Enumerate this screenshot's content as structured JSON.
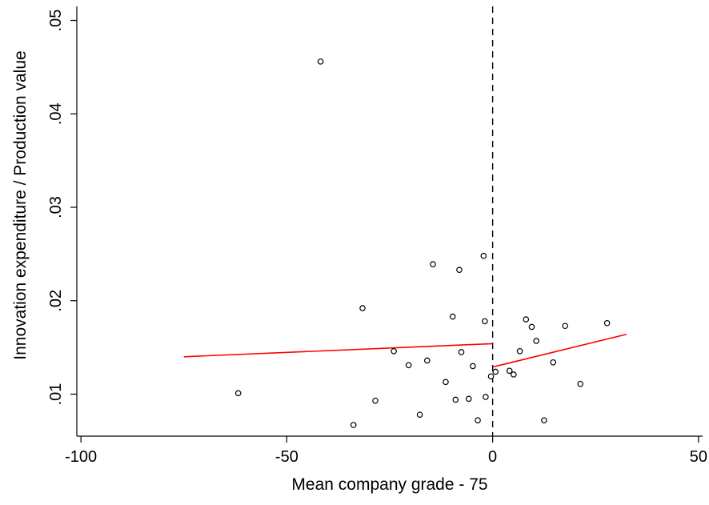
{
  "chart_data": {
    "type": "scatter",
    "xlabel": "Mean company grade - 75",
    "ylabel": "Innovation expenditure / Production value",
    "xlim": [
      -101,
      51
    ],
    "ylim": [
      0.0055,
      0.0515
    ],
    "x_ticks": [
      -100,
      -50,
      0,
      50
    ],
    "x_tick_labels": [
      "-100",
      "-50",
      "0",
      "50"
    ],
    "y_ticks": [
      0.01,
      0.02,
      0.03,
      0.04,
      0.05
    ],
    "y_tick_labels": [
      ".01",
      ".02",
      ".03",
      ".04",
      ".05"
    ],
    "grid": false,
    "legend": "none",
    "cutoff_line": {
      "x": 0,
      "style": "dashed",
      "color": "#000000"
    },
    "points": [
      {
        "x": -41.8,
        "y": 0.0456
      },
      {
        "x": -61.8,
        "y": 0.0101
      },
      {
        "x": -33.8,
        "y": 0.0067
      },
      {
        "x": -31.6,
        "y": 0.0192
      },
      {
        "x": -28.5,
        "y": 0.0093
      },
      {
        "x": -24.0,
        "y": 0.0146
      },
      {
        "x": -20.4,
        "y": 0.0131
      },
      {
        "x": -17.7,
        "y": 0.0078
      },
      {
        "x": -15.9,
        "y": 0.0136
      },
      {
        "x": -14.5,
        "y": 0.0239
      },
      {
        "x": -11.4,
        "y": 0.0113
      },
      {
        "x": -9.7,
        "y": 0.0183
      },
      {
        "x": -9.0,
        "y": 0.0094
      },
      {
        "x": -8.1,
        "y": 0.0233
      },
      {
        "x": -7.6,
        "y": 0.0145
      },
      {
        "x": -5.8,
        "y": 0.0095
      },
      {
        "x": -4.8,
        "y": 0.013
      },
      {
        "x": -3.6,
        "y": 0.0072
      },
      {
        "x": -2.2,
        "y": 0.0248
      },
      {
        "x": -1.9,
        "y": 0.0178
      },
      {
        "x": -1.7,
        "y": 0.0097
      },
      {
        "x": -0.4,
        "y": 0.0119
      },
      {
        "x": 0.7,
        "y": 0.0124
      },
      {
        "x": 4.1,
        "y": 0.0125
      },
      {
        "x": 5.1,
        "y": 0.0121
      },
      {
        "x": 6.6,
        "y": 0.0146
      },
      {
        "x": 8.1,
        "y": 0.018
      },
      {
        "x": 9.5,
        "y": 0.0172
      },
      {
        "x": 10.6,
        "y": 0.0157
      },
      {
        "x": 12.5,
        "y": 0.0072
      },
      {
        "x": 14.7,
        "y": 0.0134
      },
      {
        "x": 17.6,
        "y": 0.0173
      },
      {
        "x": 21.3,
        "y": 0.0111
      },
      {
        "x": 27.8,
        "y": 0.0176
      }
    ],
    "fit_lines": [
      {
        "color": "#ff0000",
        "x": [
          -75,
          0
        ],
        "y": [
          0.014,
          0.0154
        ]
      },
      {
        "color": "#ff0000",
        "x": [
          0,
          32.5
        ],
        "y": [
          0.0129,
          0.0164
        ]
      }
    ],
    "colors": {
      "points": "#000000",
      "axes": "#000000",
      "fit": "#ff0000"
    }
  }
}
